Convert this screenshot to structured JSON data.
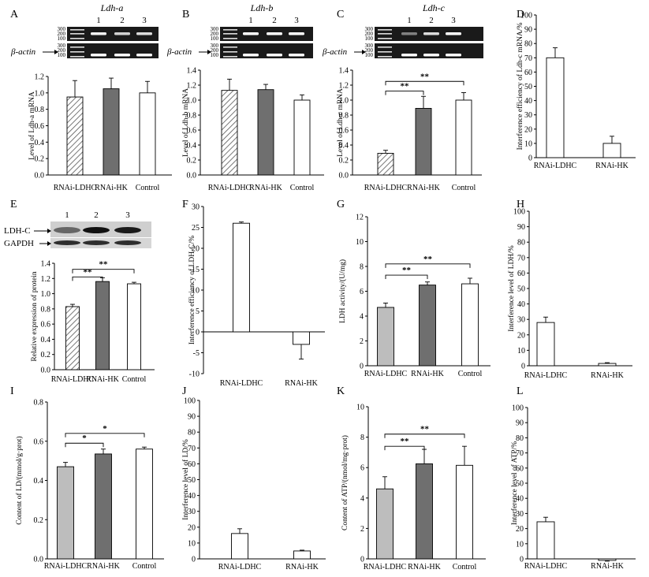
{
  "figure": {
    "panel_letters": [
      "A",
      "B",
      "C",
      "D",
      "E",
      "F",
      "G",
      "H",
      "I",
      "J",
      "K",
      "L"
    ]
  },
  "colors": {
    "hatch": "#777777",
    "dark_gray": "#6f6f6f",
    "light_gray": "#bdbdbd",
    "white": "#ffffff",
    "gel": "#1a1a1a",
    "band": "#ffffff"
  },
  "gels": {
    "A": {
      "gene": "Ldh-a",
      "lanes": [
        "1",
        "2",
        "3"
      ],
      "ladder_top": [
        "300",
        "200",
        "100"
      ],
      "ladder_bottom": [
        "300",
        "200",
        "100"
      ],
      "actin_label": "β-actin"
    },
    "B": {
      "gene": "Ldh-b",
      "lanes": [
        "1",
        "2",
        "3"
      ],
      "ladder_top": [
        "300",
        "200",
        "100"
      ],
      "ladder_bottom": [
        "300",
        "200",
        "100"
      ],
      "actin_label": "β-actin"
    },
    "C": {
      "gene": "Ldh-c",
      "lanes": [
        "1",
        "2",
        "3"
      ],
      "ladder_top": [
        "300",
        "200",
        "100"
      ],
      "ladder_bottom": [
        "300",
        "200",
        "100"
      ],
      "actin_label": "β-actin"
    }
  },
  "western": {
    "lanes": [
      "1",
      "2",
      "3"
    ],
    "labels": [
      "LDH-C",
      "GAPDH"
    ]
  },
  "chart_data": [
    {
      "panel": "A",
      "type": "bar",
      "categories": [
        "RNAi-LDHC",
        "RNAi-HK",
        "Control"
      ],
      "values": [
        0.95,
        1.05,
        1.0
      ],
      "errors": [
        0.2,
        0.13,
        0.14
      ],
      "fills": [
        "hatch",
        "dark",
        "white"
      ],
      "ylabel": "Level of Ldh-a mRNA",
      "ylim": [
        0,
        1.2
      ],
      "yticks": [
        0,
        0.2,
        0.4,
        0.6,
        0.8,
        1.0,
        1.2
      ],
      "sig": []
    },
    {
      "panel": "B",
      "type": "bar",
      "categories": [
        "RNAi-LDHC",
        "RNAi-HK",
        "Control"
      ],
      "values": [
        1.13,
        1.14,
        1.0
      ],
      "errors": [
        0.15,
        0.07,
        0.07
      ],
      "fills": [
        "hatch",
        "dark",
        "white"
      ],
      "ylabel": "Level of Ldh-b mRNA",
      "ylim": [
        0,
        1.4
      ],
      "yticks": [
        0,
        0.2,
        0.4,
        0.6,
        0.8,
        1.0,
        1.2,
        1.4
      ],
      "sig": []
    },
    {
      "panel": "C",
      "type": "bar",
      "categories": [
        "RNAi-LDHC",
        "RNAi-HK",
        "Control"
      ],
      "values": [
        0.29,
        0.89,
        1.0
      ],
      "errors": [
        0.04,
        0.16,
        0.1
      ],
      "fills": [
        "hatch",
        "dark",
        "white"
      ],
      "ylabel": "Level of Ldh-c mRNA",
      "ylim": [
        0,
        1.4
      ],
      "yticks": [
        0,
        0.2,
        0.4,
        0.6,
        0.8,
        1.0,
        1.2,
        1.4
      ],
      "sig": [
        {
          "from": 0,
          "to": 1,
          "y": 1.12,
          "label": "**"
        },
        {
          "from": 0,
          "to": 2,
          "y": 1.25,
          "label": "**"
        }
      ]
    },
    {
      "panel": "D",
      "type": "bar",
      "categories": [
        "RNAi-LDHC",
        "RNAi-HK"
      ],
      "values": [
        70,
        10
      ],
      "errors": [
        7,
        5
      ],
      "fills": [
        "white",
        "white"
      ],
      "ylabel": "Interference efficiency of Ldh-c mRNA/%",
      "ylim": [
        0,
        100
      ],
      "yticks": [
        0,
        10,
        20,
        30,
        40,
        50,
        60,
        70,
        80,
        90,
        100
      ],
      "sig": []
    },
    {
      "panel": "E",
      "type": "bar",
      "categories": [
        "RNAi-LDHC",
        "RNAi-HK",
        "Control"
      ],
      "values": [
        0.83,
        1.16,
        1.13
      ],
      "errors": [
        0.03,
        0.05,
        0.02
      ],
      "fills": [
        "hatch",
        "dark",
        "white"
      ],
      "ylabel": "Relative expression of protein",
      "ylim": [
        0,
        1.4
      ],
      "yticks": [
        0,
        0.2,
        0.4,
        0.6,
        0.8,
        1.0,
        1.2,
        1.4
      ],
      "sig": [
        {
          "from": 0,
          "to": 1,
          "y": 1.22,
          "label": "**"
        },
        {
          "from": 0,
          "to": 2,
          "y": 1.32,
          "label": "**"
        }
      ]
    },
    {
      "panel": "F",
      "type": "bar",
      "categories": [
        "RNAi-LDHC",
        "RNAi-HK"
      ],
      "values": [
        26,
        -3
      ],
      "errors": [
        0.3,
        3.5
      ],
      "fills": [
        "white",
        "white"
      ],
      "ylabel": "Interference efficiency of LDH-C/%",
      "ylim": [
        -10,
        30
      ],
      "yticks": [
        -10,
        -5,
        0,
        5,
        10,
        15,
        20,
        25,
        30
      ],
      "sig": []
    },
    {
      "panel": "G",
      "type": "bar",
      "categories": [
        "RNAi-LDHC",
        "RNAi-HK",
        "Control"
      ],
      "values": [
        4.7,
        6.5,
        6.6
      ],
      "errors": [
        0.35,
        0.25,
        0.45
      ],
      "fills": [
        "light",
        "dark",
        "white"
      ],
      "ylabel": "LDH activity/(U/mg)",
      "ylim": [
        0,
        12
      ],
      "yticks": [
        0,
        2,
        4,
        6,
        8,
        10,
        12
      ],
      "sig": [
        {
          "from": 0,
          "to": 1,
          "y": 7.3,
          "label": "**"
        },
        {
          "from": 0,
          "to": 2,
          "y": 8.2,
          "label": "**"
        }
      ]
    },
    {
      "panel": "H",
      "type": "bar",
      "categories": [
        "RNAi-LDHC",
        "RNAi-HK"
      ],
      "values": [
        28,
        1.5
      ],
      "errors": [
        3.5,
        0.5
      ],
      "fills": [
        "white",
        "white"
      ],
      "ylabel": "Interference level of LDH/%",
      "ylim": [
        0,
        100
      ],
      "yticks": [
        0,
        10,
        20,
        30,
        40,
        50,
        60,
        70,
        80,
        90,
        100
      ],
      "sig": []
    },
    {
      "panel": "I",
      "type": "bar",
      "categories": [
        "RNAi-LDHC",
        "RNAi-HK",
        "Control"
      ],
      "values": [
        0.47,
        0.535,
        0.56
      ],
      "errors": [
        0.022,
        0.025,
        0.01
      ],
      "fills": [
        "light",
        "dark",
        "white"
      ],
      "ylabel": "Content of LD/(mmol/g·prot)",
      "ylim": [
        0,
        0.8
      ],
      "yticks": [
        0,
        0.2,
        0.4,
        0.6,
        0.8
      ],
      "sig": [
        {
          "from": 0,
          "to": 1,
          "y": 0.59,
          "label": "*"
        },
        {
          "from": 0,
          "to": 2,
          "y": 0.64,
          "label": "*"
        }
      ]
    },
    {
      "panel": "J",
      "type": "bar",
      "categories": [
        "RNAi-LDHC",
        "RNAi-HK"
      ],
      "values": [
        16,
        5
      ],
      "errors": [
        3,
        0.5
      ],
      "fills": [
        "white",
        "white"
      ],
      "ylabel": "Interference level of LD/%",
      "ylim": [
        0,
        100
      ],
      "yticks": [
        0,
        10,
        20,
        30,
        40,
        50,
        60,
        70,
        80,
        90,
        100
      ],
      "sig": []
    },
    {
      "panel": "K",
      "type": "bar",
      "categories": [
        "RNAi-LDHC",
        "RNAi-HK",
        "Control"
      ],
      "values": [
        4.6,
        6.25,
        6.15
      ],
      "errors": [
        0.8,
        0.95,
        1.25
      ],
      "fills": [
        "light",
        "dark",
        "white"
      ],
      "ylabel": "Content of ATP/(nmol/mg·prot)",
      "ylim": [
        0,
        10
      ],
      "yticks": [
        0,
        2,
        4,
        6,
        8,
        10
      ],
      "sig": [
        {
          "from": 0,
          "to": 1,
          "y": 7.4,
          "label": "**"
        },
        {
          "from": 0,
          "to": 2,
          "y": 8.2,
          "label": "**"
        }
      ]
    },
    {
      "panel": "L",
      "type": "bar",
      "categories": [
        "RNAi-LDHC",
        "RNAi-HK"
      ],
      "values": [
        24.5,
        -1
      ],
      "errors": [
        3,
        0.5
      ],
      "fills": [
        "white",
        "white"
      ],
      "ylabel": "Interference level of ATP/%",
      "ylim": [
        0,
        100
      ],
      "yticks": [
        0,
        10,
        20,
        30,
        40,
        50,
        60,
        70,
        80,
        90,
        100
      ],
      "sig": []
    }
  ]
}
